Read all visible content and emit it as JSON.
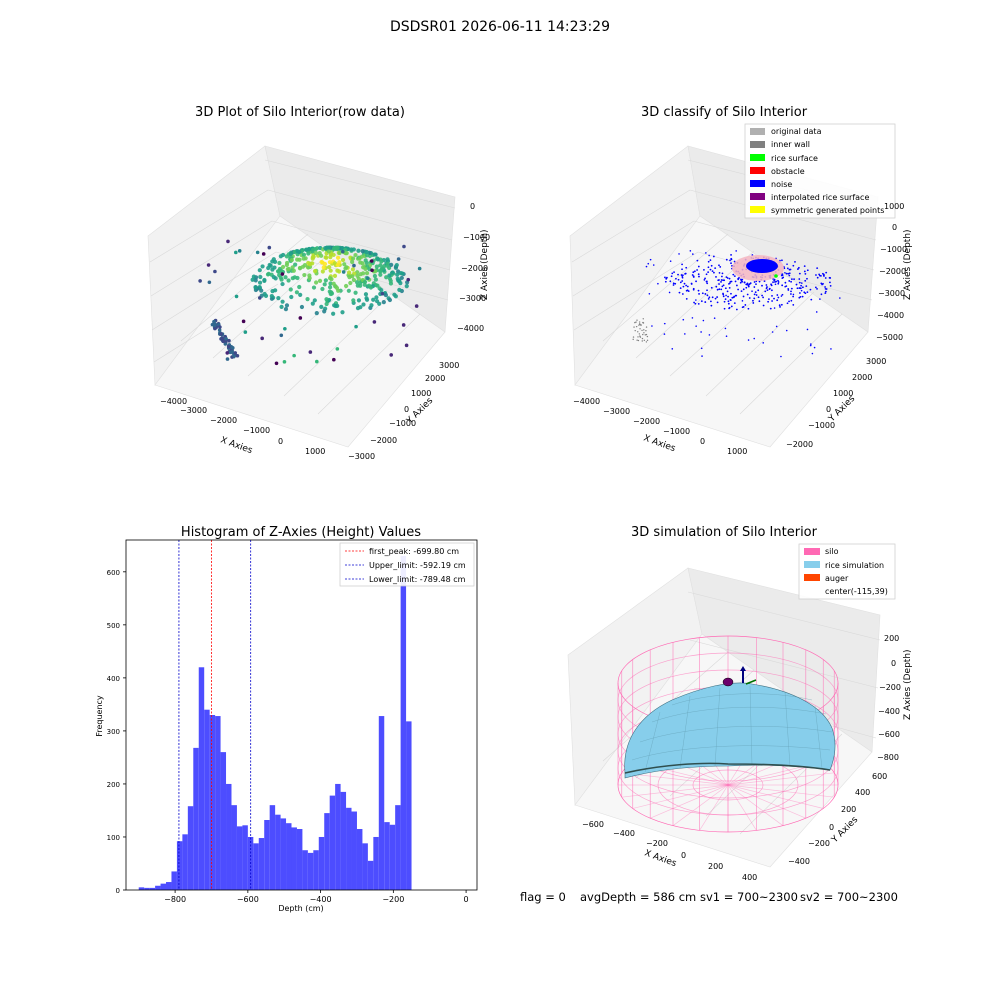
{
  "figure": {
    "suptitle": "DSDSR01 2026-06-11 14:23:29",
    "footer": {
      "flag": "flag = 0",
      "avg_depth": "avgDepth = 586 cm",
      "sv1": "sv1 = 700~2300",
      "sv2": "sv2 = 700~2300"
    }
  },
  "colors": {
    "histogram_bar": "#4d4dff",
    "first_peak_line": "#ff0000",
    "limit_line": "#0000cc",
    "silo_wire": "#ff69b4",
    "rice_simulation": "#87ceeb",
    "auger": "#ff4500",
    "original_data": "#b0b0b0",
    "inner_wall": "#808080",
    "rice_surface": "#00ff00",
    "obstacle": "#ff0000",
    "noise": "#0000ff",
    "interpolated_rice_surface": "#800080",
    "symmetric_generated_points": "#ffff00"
  },
  "chart_data": [
    {
      "type": "scatter",
      "title": "3D Plot of Silo Interior(row data)",
      "xlabel": "X Axies",
      "ylabel": "Y Axies",
      "zlabel": "Z Axies (Depth)",
      "x_ticks": [
        "−4000",
        "−3000",
        "−2000",
        "−1000",
        "0",
        "1000"
      ],
      "y_ticks": [
        "−3000",
        "−2000",
        "−1000",
        "0",
        "1000",
        "2000",
        "3000"
      ],
      "z_ticks": [
        "0",
        "−1000",
        "−2000",
        "−3000",
        "−4000"
      ],
      "colormap": "viridis (by depth)"
    },
    {
      "type": "scatter",
      "title": "3D classify of Silo Interior",
      "xlabel": "X Axies",
      "ylabel": "Y Axies",
      "zlabel": "Z Axies (Depth)",
      "x_ticks": [
        "−4000",
        "−3000",
        "−2000",
        "−1000",
        "0",
        "1000"
      ],
      "y_ticks": [
        "−2000",
        "−1000",
        "0",
        "1000",
        "2000",
        "3000"
      ],
      "z_ticks": [
        "1000",
        "0",
        "−1000",
        "−2000",
        "−3000",
        "−4000",
        "−5000"
      ],
      "legend": [
        {
          "label": "original data",
          "color": "#b0b0b0"
        },
        {
          "label": "inner wall",
          "color": "#808080"
        },
        {
          "label": "rice surface",
          "color": "#00ff00"
        },
        {
          "label": "obstacle",
          "color": "#ff0000"
        },
        {
          "label": "noise",
          "color": "#0000ff"
        },
        {
          "label": "interpolated rice surface",
          "color": "#800080"
        },
        {
          "label": "symmetric generated points",
          "color": "#ffff00"
        }
      ],
      "legend_position": "top-right"
    },
    {
      "type": "bar",
      "title": "Histogram of Z-Axies (Height) Values",
      "xlabel": "Depth (cm)",
      "ylabel": "Frequency",
      "xlim": [
        -935,
        30
      ],
      "ylim": [
        0,
        660
      ],
      "x_ticks": [
        -800,
        -600,
        -400,
        -200,
        0
      ],
      "y_ticks": [
        0,
        100,
        200,
        300,
        400,
        500,
        600
      ],
      "bin_start": -900,
      "bin_width": 15,
      "values": [
        5,
        4,
        4,
        8,
        12,
        15,
        35,
        92,
        105,
        158,
        268,
        420,
        340,
        330,
        328,
        260,
        200,
        160,
        120,
        122,
        100,
        88,
        98,
        132,
        160,
        142,
        135,
        126,
        118,
        115,
        75,
        70,
        75,
        100,
        145,
        178,
        200,
        185,
        155,
        148,
        115,
        88,
        55,
        100,
        328,
        128,
        123,
        160,
        630,
        318
      ],
      "vlines": [
        {
          "label": "first_peak: -699.80 cm",
          "x": -699.8,
          "color": "#ff0000"
        },
        {
          "label": "Upper_limit: -592.19 cm",
          "x": -592.19,
          "color": "#0000cc"
        },
        {
          "label": "Lower_limit: -789.48 cm",
          "x": -789.48,
          "color": "#0000cc"
        }
      ],
      "legend_position": "top-right"
    },
    {
      "type": "area",
      "title": "3D simulation of Silo Interior",
      "xlabel": "X Axies",
      "ylabel": "Y Axies",
      "zlabel": "Z Axies (Depth)",
      "x_ticks": [
        "−600",
        "−400",
        "−200",
        "0",
        "200",
        "400"
      ],
      "y_ticks": [
        "−400",
        "−200",
        "0",
        "200",
        "400",
        "600"
      ],
      "z_ticks": [
        "200",
        "0",
        "−200",
        "−400",
        "−600",
        "−800"
      ],
      "legend": [
        {
          "label": "silo",
          "color": "#ff69b4"
        },
        {
          "label": "rice simulation",
          "color": "#87ceeb"
        },
        {
          "label": "auger",
          "color": "#ff4500"
        },
        {
          "label": "center(-115,39)",
          "color": ""
        }
      ],
      "legend_position": "top-right"
    }
  ]
}
